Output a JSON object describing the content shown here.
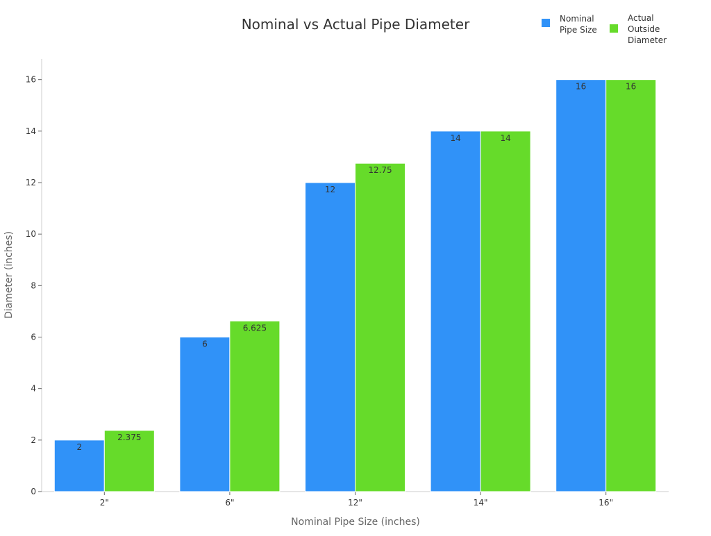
{
  "chart_data": {
    "type": "bar",
    "title": "Nominal vs Actual Pipe Diameter",
    "xlabel": "Nominal Pipe Size (inches)",
    "ylabel": "Diameter (inches)",
    "categories": [
      "2\"",
      "6\"",
      "12\"",
      "14\"",
      "16\""
    ],
    "series": [
      {
        "name": "Nominal Pipe Size",
        "legend_lines": [
          "Nominal",
          "Pipe Size"
        ],
        "color": "#3092f8",
        "values": [
          2,
          6,
          12,
          14,
          16
        ],
        "labels": [
          "2",
          "6",
          "12",
          "14",
          "16"
        ]
      },
      {
        "name": "Actual Outside Diameter",
        "legend_lines": [
          "Actual",
          "Outside",
          "Diameter"
        ],
        "color": "#66db2a",
        "values": [
          2.375,
          6.625,
          12.75,
          14,
          16
        ],
        "labels": [
          "2.375",
          "6.625",
          "12.75",
          "14",
          "16"
        ]
      }
    ],
    "ylim": [
      0,
      16.8
    ],
    "yticks": [
      0,
      2,
      4,
      6,
      8,
      10,
      12,
      14,
      16
    ],
    "grid": false,
    "legend_position": "top-right"
  }
}
